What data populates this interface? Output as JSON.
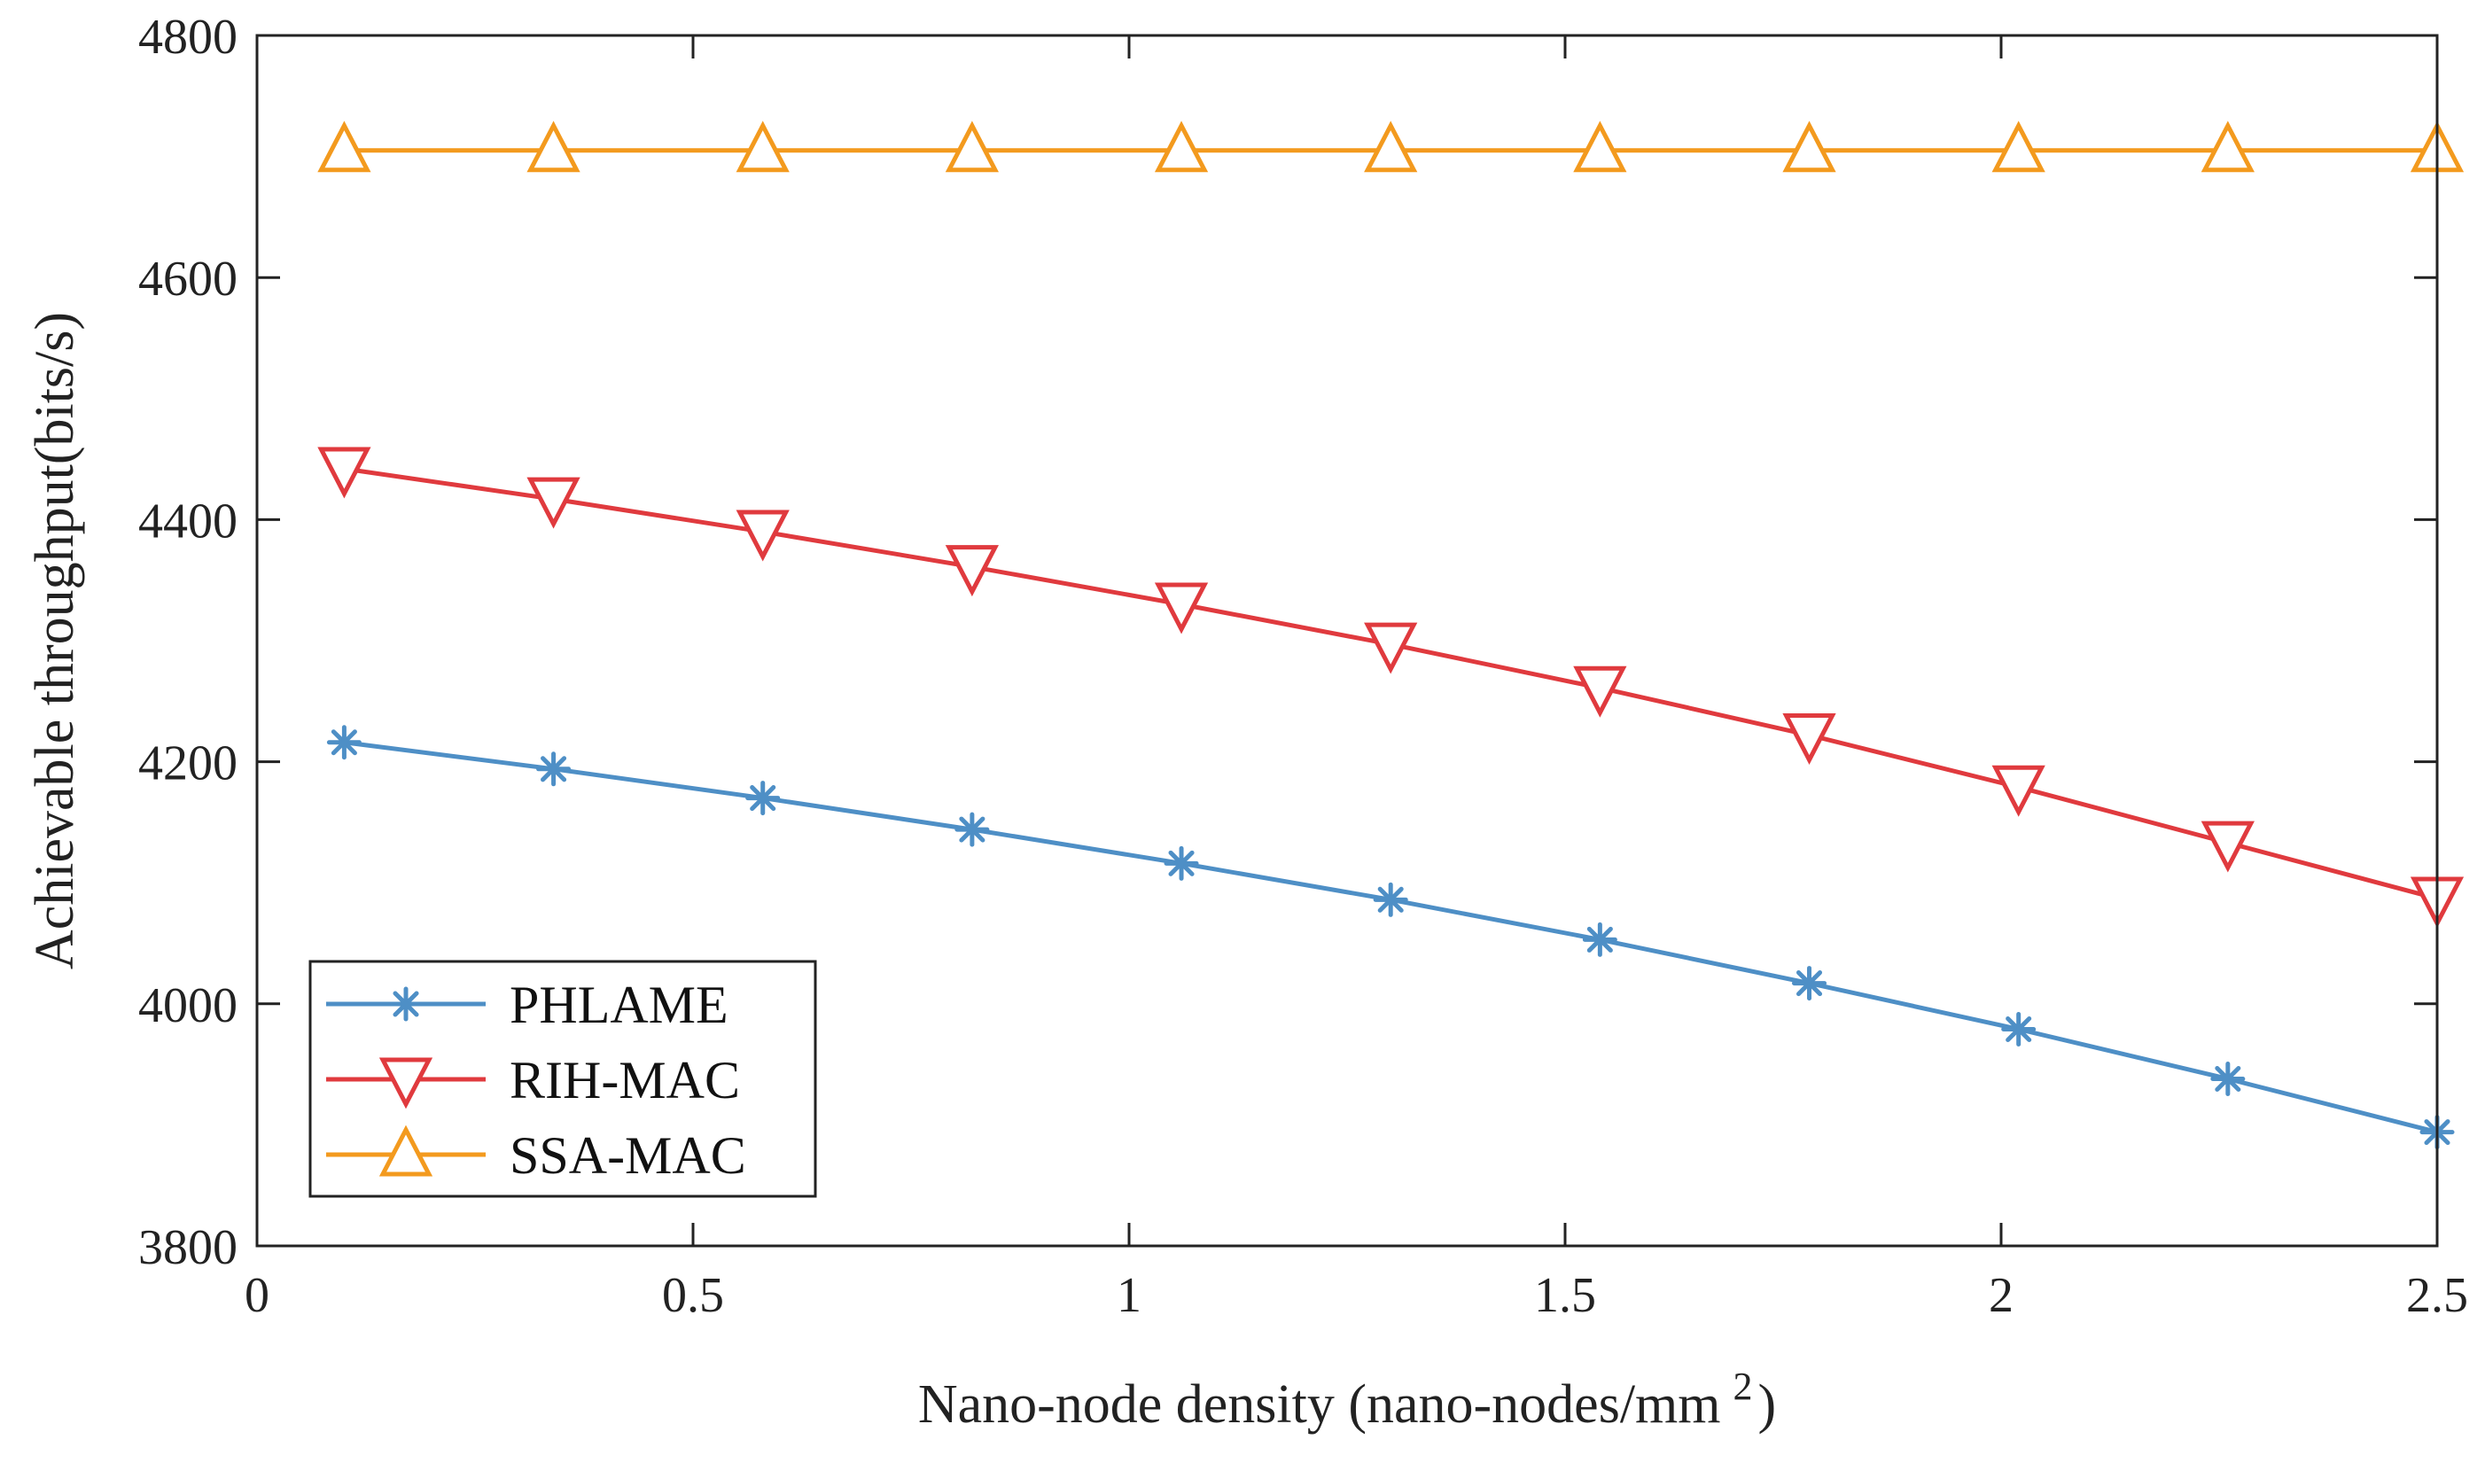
{
  "chart_data": {
    "type": "line",
    "xlabel": "Nano-node density (nano-nodes/mm",
    "xlabel_superscript": "2",
    "xlabel_suffix": ")",
    "ylabel": "Achievable throughput(bits/s)",
    "xlim": [
      0,
      2.5
    ],
    "ylim": [
      3800,
      4800
    ],
    "x_ticks": [
      0,
      0.5,
      1,
      1.5,
      2,
      2.5
    ],
    "x_tick_labels": [
      "0",
      "0.5",
      "1",
      "1.5",
      "2",
      "2.5"
    ],
    "y_ticks": [
      3800,
      4000,
      4200,
      4400,
      4600,
      4800
    ],
    "y_tick_labels": [
      "3800",
      "4000",
      "4200",
      "4400",
      "4600",
      "4800"
    ],
    "grid": false,
    "legend_position": "bottom-left",
    "x": [
      0.1,
      0.34,
      0.58,
      0.82,
      1.06,
      1.3,
      1.54,
      1.78,
      2.02,
      2.26,
      2.5
    ],
    "series": [
      {
        "name": "PHLAME",
        "color": "#4E8FC6",
        "marker": "asterisk",
        "values": [
          4216,
          4194,
          4170,
          4144,
          4116,
          4086,
          4053,
          4017,
          3979,
          3938,
          3894
        ]
      },
      {
        "name": "RIH-MAC",
        "color": "#E03A3E",
        "marker": "triangle-down",
        "values": [
          4442,
          4417,
          4390,
          4361,
          4330,
          4297,
          4261,
          4222,
          4179,
          4133,
          4087
        ]
      },
      {
        "name": "SSA-MAC",
        "color": "#F39A1E",
        "marker": "triangle-up",
        "values": [
          4705,
          4705,
          4705,
          4705,
          4705,
          4705,
          4705,
          4705,
          4705,
          4705,
          4705
        ]
      }
    ]
  }
}
